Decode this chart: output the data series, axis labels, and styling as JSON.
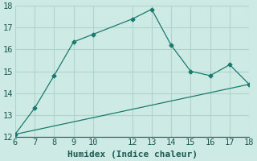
{
  "xlabel": "Humidex (Indice chaleur)",
  "bg_color": "#ceeae4",
  "line_color": "#1a7a6e",
  "grid_color": "#aed4cc",
  "line1_x": [
    6,
    7,
    8,
    9,
    10,
    12,
    13,
    14,
    15,
    16,
    17,
    18
  ],
  "line1_y": [
    12.1,
    13.3,
    14.8,
    16.35,
    16.7,
    17.4,
    17.85,
    16.2,
    15.0,
    14.8,
    15.3,
    14.4
  ],
  "line2_x": [
    6,
    18
  ],
  "line2_y": [
    12.1,
    14.4
  ],
  "xlim": [
    6,
    18
  ],
  "ylim": [
    12,
    18
  ],
  "xticks": [
    6,
    7,
    8,
    9,
    10,
    12,
    13,
    14,
    15,
    16,
    17,
    18
  ],
  "yticks": [
    12,
    13,
    14,
    15,
    16,
    17,
    18
  ],
  "xlabel_fontsize": 8,
  "tick_fontsize": 7.5
}
